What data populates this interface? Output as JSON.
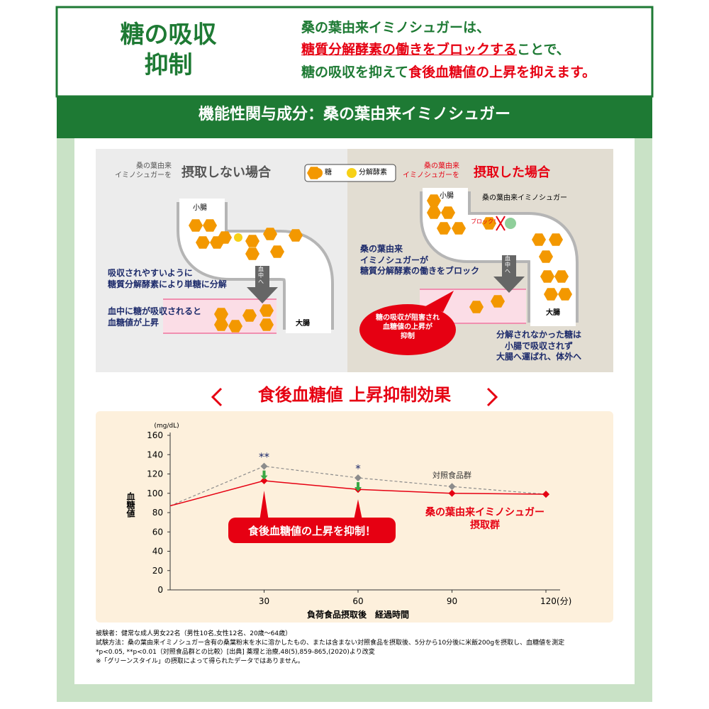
{
  "header": {
    "title": "糖の吸収\n抑制",
    "lines": [
      [
        {
          "text": "桑の葉由来イミノシュガーは、",
          "color": "#1e7a34"
        }
      ],
      [
        {
          "text": "糖質分解酵素の働きをブロックする",
          "color": "#e60012",
          "underline": true
        },
        {
          "text": "ことで、",
          "color": "#1e7a34"
        }
      ],
      [
        {
          "text": "糖の吸収を抑えて",
          "color": "#1e7a34"
        },
        {
          "text": "食後血糖値の上昇を抑えます。",
          "color": "#e60012"
        }
      ]
    ]
  },
  "band": "機能性関与成分：桑の葉由来イミノシュガー",
  "diagram": {
    "legend": [
      "糖",
      "分解酵素"
    ],
    "left": {
      "prefix": "桑の葉由来\nイミノシュガーを",
      "title": "摂取しない場合",
      "small_intestine": "小腸",
      "large_intestine": "大腸",
      "to_blood": "血\n中\nへ",
      "note1": "吸収されやすいように\n糖質分解酵素により単糖に分解",
      "note2": "血中に糖が吸収されると\n血糖値が上昇"
    },
    "right": {
      "prefix": "桑の葉由来\nイミノシュガーを",
      "title": "摂取した場合",
      "small_intestine": "小腸",
      "imino_label": "桑の葉由来イミノシュガー",
      "block": "ブロック！",
      "to_blood": "血\n中\nへ",
      "note1": "桑の葉由来\nイミノシュガーが\n糖質分解酵素の働きをブロック",
      "bubble": "糖の吸収が阻害され\n血糖値の上昇が\n抑制",
      "large_intestine": "大腸",
      "note2": "分解されなかった糖は\n小腸で吸収されず\n大腸へ運ばれ、体外へ"
    }
  },
  "section_title": "食後血糖値 上昇抑制効果",
  "chart_data": {
    "type": "line",
    "y_unit": "(mg/dL)",
    "ylabel": "血糖値",
    "xlabel": "負荷食品摂取後　経過時間",
    "x": [
      0,
      30,
      60,
      90,
      120
    ],
    "xlim": [
      0,
      120
    ],
    "xticks": [
      30,
      60,
      90,
      {
        "value": 120,
        "label": "120(分)"
      }
    ],
    "ylim": [
      0,
      160
    ],
    "yticks": [
      0,
      20,
      40,
      60,
      80,
      100,
      120,
      140,
      160
    ],
    "series": [
      {
        "name": "対照食品群",
        "color": "#8c8c8c",
        "style": "dashed",
        "values": [
          87,
          128,
          116,
          107,
          99
        ]
      },
      {
        "name": "桑の葉由来イミノシュガー\n摂取群",
        "color": "#e60012",
        "style": "solid",
        "values": [
          87,
          113,
          104,
          100,
          99
        ]
      }
    ],
    "annotations": [
      {
        "x": 30,
        "text": "**"
      },
      {
        "x": 60,
        "text": "*"
      }
    ],
    "callout": "食後血糖値の上昇を抑制！"
  },
  "footnotes": [
    "被験者：健常な成人男女22名（男性10名,女性12名、20歳〜64歳）",
    "試験方法：桑の葉由来イミノシュガー含有の桑葉粉末を水に溶かしたもの、または含まない対照食品を摂取後、5分から10分後に米飯200gを摂取し、血糖値を測定",
    "*p<0.05, **p<0.01（対照食品群との比較）[出典] 薬理と治療,48(5),859-865,(2020)より改変",
    "※「グリーンスタイル」の摂取によって得られたデータではありません。"
  ]
}
